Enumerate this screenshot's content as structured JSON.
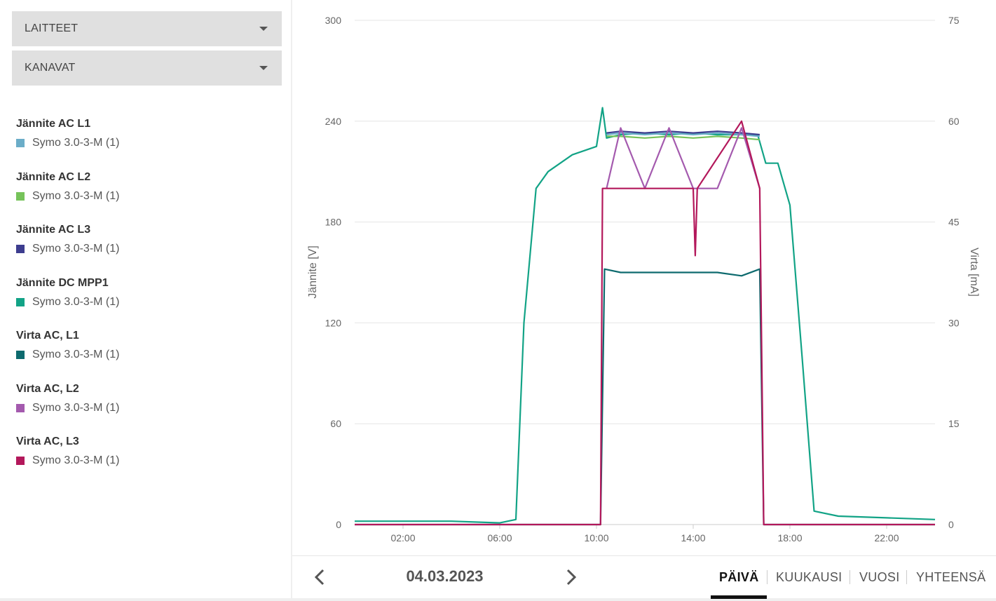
{
  "sidebar": {
    "devices_label": "LAITTEET",
    "channels_label": "KANAVAT",
    "legend": [
      {
        "title": "Jännite AC L1",
        "item": "Symo 3.0-3-M (1)",
        "color": "#6badc8"
      },
      {
        "title": "Jännite AC L2",
        "item": "Symo 3.0-3-M (1)",
        "color": "#76c35a"
      },
      {
        "title": "Jännite AC L3",
        "item": "Symo 3.0-3-M (1)",
        "color": "#3d3d8f"
      },
      {
        "title": "Jännite DC MPP1",
        "item": "Symo 3.0-3-M (1)",
        "color": "#12a386"
      },
      {
        "title": "Virta AC, L1",
        "item": "Symo 3.0-3-M (1)",
        "color": "#0d6a6e"
      },
      {
        "title": "Virta AC, L2",
        "item": "Symo 3.0-3-M (1)",
        "color": "#a45aae"
      },
      {
        "title": "Virta AC, L3",
        "item": "Symo 3.0-3-M (1)",
        "color": "#b3185b"
      }
    ]
  },
  "navigation": {
    "date": "04.03.2023",
    "tabs": [
      "PÄIVÄ",
      "KUUKAUSI",
      "VUOSI",
      "YHTEENSÄ"
    ],
    "active_tab": "PÄIVÄ"
  },
  "chart_data": {
    "type": "line",
    "ylabel": "Jännite [V]",
    "y2label": "Virta [mA]",
    "ylim": [
      0,
      300
    ],
    "y2lim": [
      0,
      75
    ],
    "yticks": [
      "0",
      "60",
      "120",
      "180",
      "240",
      "300"
    ],
    "y2ticks": [
      "0",
      "15",
      "30",
      "45",
      "60",
      "75"
    ],
    "xlim": [
      "00:00",
      "24:00"
    ],
    "xticks": [
      "02:00",
      "06:00",
      "10:00",
      "14:00",
      "18:00",
      "22:00"
    ],
    "grid": true,
    "series": [
      {
        "name": "Jännite AC L1",
        "axis": "left",
        "x": [
          "10:25",
          "11:00",
          "12:00",
          "13:00",
          "14:00",
          "15:00",
          "16:00",
          "16:45"
        ],
        "values": [
          232,
          233,
          232,
          233,
          232,
          233,
          232,
          231
        ]
      },
      {
        "name": "Jännite AC L2",
        "axis": "left",
        "x": [
          "10:25",
          "11:00",
          "12:00",
          "13:00",
          "14:00",
          "15:00",
          "16:00",
          "16:45"
        ],
        "values": [
          231,
          231,
          230,
          231,
          230,
          231,
          230,
          229
        ]
      },
      {
        "name": "Jännite AC L3",
        "axis": "left",
        "x": [
          "10:25",
          "11:00",
          "12:00",
          "13:00",
          "14:00",
          "15:00",
          "16:00",
          "16:45"
        ],
        "values": [
          233,
          234,
          233,
          234,
          233,
          234,
          233,
          232
        ]
      },
      {
        "name": "Jännite DC MPP1",
        "axis": "left",
        "x": [
          "00:00",
          "04:00",
          "06:00",
          "06:40",
          "07:00",
          "07:30",
          "08:00",
          "09:00",
          "10:00",
          "10:15",
          "10:25",
          "11:00",
          "12:00",
          "13:00",
          "14:00",
          "15:00",
          "16:00",
          "16:40",
          "17:00",
          "17:30",
          "18:00",
          "18:30",
          "19:00",
          "20:00",
          "22:00",
          "24:00"
        ],
        "values": [
          2,
          2,
          1,
          3,
          120,
          200,
          210,
          220,
          225,
          248,
          230,
          232,
          233,
          232,
          233,
          232,
          232,
          232,
          215,
          215,
          190,
          100,
          8,
          5,
          4,
          3
        ]
      },
      {
        "name": "Virta AC, L1",
        "axis": "right",
        "x": [
          "00:00",
          "10:10",
          "10:20",
          "11:00",
          "12:00",
          "13:00",
          "14:00",
          "15:00",
          "16:00",
          "16:45",
          "16:55",
          "24:00"
        ],
        "values": [
          0,
          0,
          38,
          37.5,
          37.5,
          37.5,
          37.5,
          37.5,
          37,
          38,
          0,
          0
        ]
      },
      {
        "name": "Virta AC, L2",
        "axis": "right",
        "x": [
          "10:25",
          "11:00",
          "12:00",
          "13:00",
          "14:00",
          "15:00",
          "16:00",
          "16:45"
        ],
        "values": [
          50,
          59,
          50,
          59,
          50,
          50,
          59,
          50
        ]
      },
      {
        "name": "Virta AC, L3",
        "axis": "right",
        "x": [
          "00:00",
          "10:10",
          "10:15",
          "14:00",
          "14:05",
          "14:10",
          "16:00",
          "16:45",
          "16:55",
          "24:00"
        ],
        "values": [
          0,
          0,
          50,
          50,
          40,
          50,
          60,
          50,
          0,
          0
        ]
      }
    ]
  }
}
